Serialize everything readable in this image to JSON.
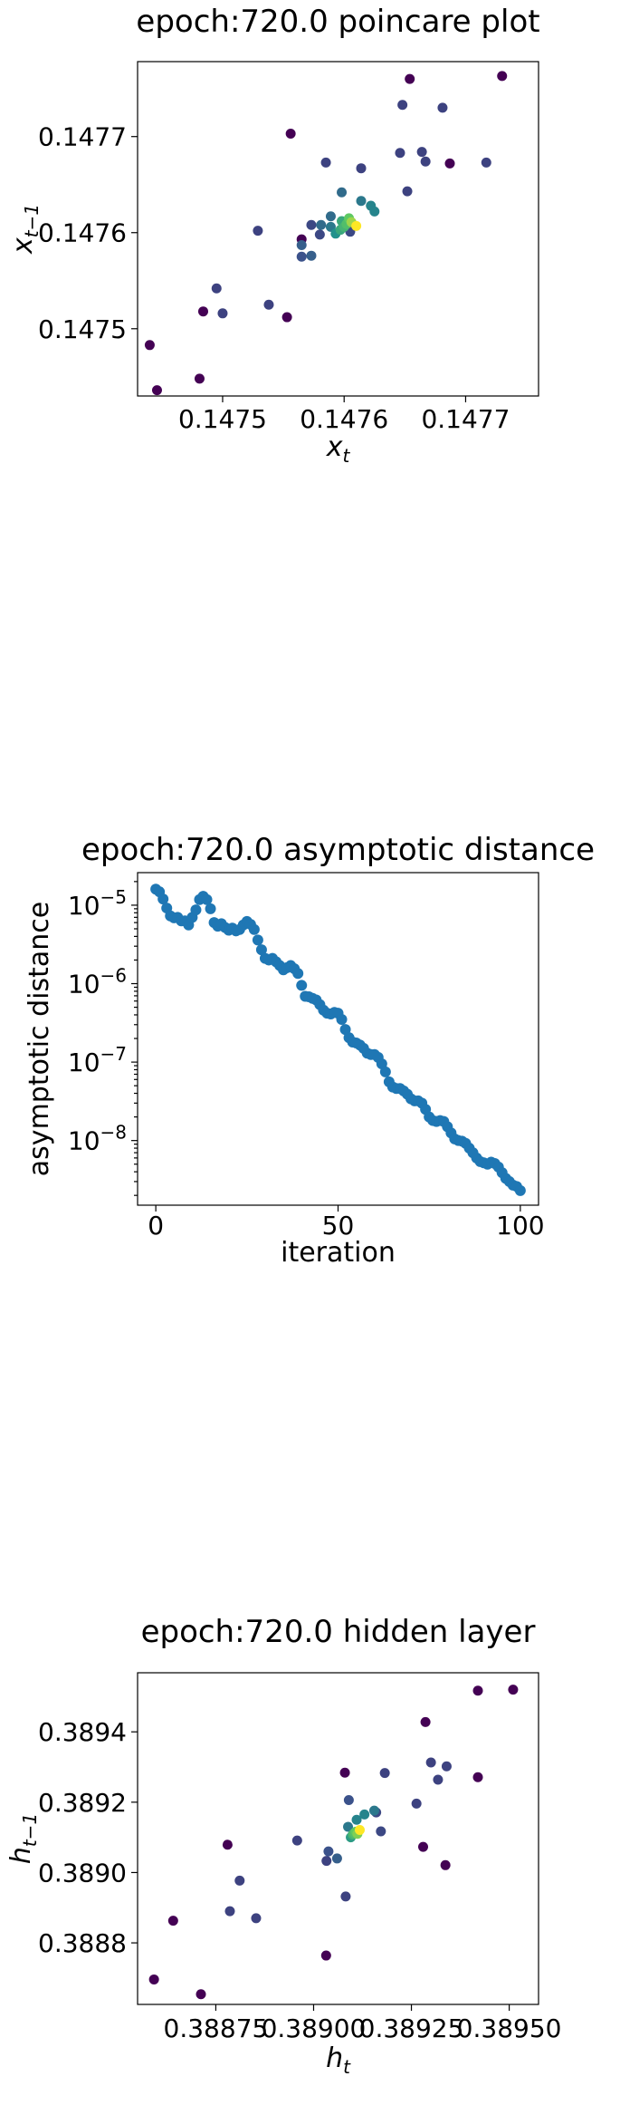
{
  "chart_data": [
    {
      "type": "scatter",
      "title": "epoch:720.0 poincare plot",
      "xlabel": "x",
      "xlabel_sub": "t",
      "ylabel": "x",
      "ylabel_sub": "t−1",
      "xlim": [
        0.14743,
        0.14776
      ],
      "ylim": [
        0.14743,
        0.147778
      ],
      "xticks": [
        0.1475,
        0.1476,
        0.1477
      ],
      "xtick_labels": [
        "0.1475",
        "0.1476",
        "0.1477"
      ],
      "yticks": [
        0.1475,
        0.1476,
        0.1477
      ],
      "ytick_labels": [
        "0.1475",
        "0.1476",
        "0.1477"
      ],
      "colormap": "viridis (point density)",
      "points": [
        {
          "x": 0.14744,
          "y": 0.147483,
          "c": 0.0
        },
        {
          "x": 0.147446,
          "y": 0.147436,
          "c": 0.0
        },
        {
          "x": 0.147481,
          "y": 0.147448,
          "c": 0.0
        },
        {
          "x": 0.147484,
          "y": 0.147518,
          "c": 0.0
        },
        {
          "x": 0.147556,
          "y": 0.147703,
          "c": 0.0
        },
        {
          "x": 0.147565,
          "y": 0.147593,
          "c": 0.0
        },
        {
          "x": 0.147687,
          "y": 0.147672,
          "c": 0.0
        },
        {
          "x": 0.14773,
          "y": 0.147763,
          "c": 0.0
        },
        {
          "x": 0.147654,
          "y": 0.14776,
          "c": 0.0
        },
        {
          "x": 0.147553,
          "y": 0.147512,
          "c": 0.0
        },
        {
          "x": 0.147495,
          "y": 0.147542,
          "c": 0.2
        },
        {
          "x": 0.1475,
          "y": 0.147516,
          "c": 0.2
        },
        {
          "x": 0.147529,
          "y": 0.147602,
          "c": 0.2
        },
        {
          "x": 0.147538,
          "y": 0.147525,
          "c": 0.2
        },
        {
          "x": 0.147573,
          "y": 0.147608,
          "c": 0.22
        },
        {
          "x": 0.14758,
          "y": 0.147598,
          "c": 0.22
        },
        {
          "x": 0.147585,
          "y": 0.147673,
          "c": 0.2
        },
        {
          "x": 0.147614,
          "y": 0.147667,
          "c": 0.2
        },
        {
          "x": 0.147605,
          "y": 0.147601,
          "c": 0.22
        },
        {
          "x": 0.147646,
          "y": 0.147683,
          "c": 0.2
        },
        {
          "x": 0.147652,
          "y": 0.147643,
          "c": 0.2
        },
        {
          "x": 0.147664,
          "y": 0.147684,
          "c": 0.2
        },
        {
          "x": 0.147667,
          "y": 0.147674,
          "c": 0.2
        },
        {
          "x": 0.147681,
          "y": 0.14773,
          "c": 0.2
        },
        {
          "x": 0.147648,
          "y": 0.147733,
          "c": 0.2
        },
        {
          "x": 0.147717,
          "y": 0.147673,
          "c": 0.2
        },
        {
          "x": 0.147565,
          "y": 0.147575,
          "c": 0.25
        },
        {
          "x": 0.147565,
          "y": 0.147587,
          "c": 0.3
        },
        {
          "x": 0.147573,
          "y": 0.147576,
          "c": 0.3
        },
        {
          "x": 0.147581,
          "y": 0.147608,
          "c": 0.35
        },
        {
          "x": 0.147589,
          "y": 0.147617,
          "c": 0.35
        },
        {
          "x": 0.147589,
          "y": 0.147606,
          "c": 0.4
        },
        {
          "x": 0.147598,
          "y": 0.147642,
          "c": 0.35
        },
        {
          "x": 0.147614,
          "y": 0.147633,
          "c": 0.4
        },
        {
          "x": 0.147622,
          "y": 0.147628,
          "c": 0.45
        },
        {
          "x": 0.147625,
          "y": 0.147622,
          "c": 0.45
        },
        {
          "x": 0.147593,
          "y": 0.147599,
          "c": 0.5
        },
        {
          "x": 0.147597,
          "y": 0.147603,
          "c": 0.6
        },
        {
          "x": 0.1476,
          "y": 0.147606,
          "c": 0.65
        },
        {
          "x": 0.147602,
          "y": 0.147609,
          "c": 0.7
        },
        {
          "x": 0.147598,
          "y": 0.147612,
          "c": 0.6
        },
        {
          "x": 0.147604,
          "y": 0.147615,
          "c": 0.75
        },
        {
          "x": 0.147606,
          "y": 0.147611,
          "c": 0.85
        },
        {
          "x": 0.14761,
          "y": 0.147607,
          "c": 1.0
        }
      ]
    },
    {
      "type": "scatter",
      "title": "epoch:720.0 asymptotic distance",
      "xlabel": "iteration",
      "ylabel": "asymptotic distance",
      "yscale": "log",
      "xlim": [
        -5,
        105
      ],
      "ylim": [
        1.5e-09,
        2.6e-05
      ],
      "xticks": [
        0,
        50,
        100
      ],
      "xtick_labels": [
        "0",
        "50",
        "100"
      ],
      "yticks": [
        1e-08,
        1e-07,
        1e-06,
        1e-05
      ],
      "ytick_labels": [
        "10",
        "10",
        "10",
        "10"
      ],
      "ytick_exponents": [
        "−8",
        "−7",
        "−6",
        "−5"
      ],
      "x": [
        0,
        1,
        2,
        3,
        4,
        5,
        6,
        7,
        8,
        9,
        10,
        11,
        12,
        13,
        14,
        15,
        16,
        17,
        18,
        19,
        20,
        21,
        22,
        23,
        24,
        25,
        26,
        27,
        28,
        29,
        30,
        31,
        32,
        33,
        34,
        35,
        36,
        37,
        38,
        39,
        40,
        41,
        42,
        43,
        44,
        45,
        46,
        47,
        48,
        49,
        50,
        51,
        52,
        53,
        54,
        55,
        56,
        57,
        58,
        59,
        60,
        61,
        62,
        63,
        64,
        65,
        66,
        67,
        68,
        69,
        70,
        71,
        72,
        73,
        74,
        75,
        76,
        77,
        78,
        79,
        80,
        81,
        82,
        83,
        84,
        85,
        86,
        87,
        88,
        89,
        90,
        91,
        92,
        93,
        94,
        95,
        96,
        97,
        98,
        99,
        100
      ],
      "y": [
        1.6e-05,
        1.48e-05,
        1.2e-05,
        9.2e-06,
        7.3e-06,
        6.9e-06,
        7e-06,
        6.3e-06,
        6.3e-06,
        5.6e-06,
        7e-06,
        8.7e-06,
        1.18e-05,
        1.3e-05,
        1.18e-05,
        9e-06,
        6e-06,
        5.4e-06,
        5.8e-06,
        5.2e-06,
        4.8e-06,
        5.1e-06,
        4.7e-06,
        4.9e-06,
        5.6e-06,
        6.2e-06,
        5.7e-06,
        4.9e-06,
        3.6e-06,
        2.7e-06,
        2.1e-06,
        2e-06,
        2.1e-06,
        1.9e-06,
        1.7e-06,
        1.5e-06,
        1.6e-06,
        1.7e-06,
        1.55e-06,
        1.35e-06,
        9.5e-07,
        6.9e-07,
        6.8e-07,
        6.5e-07,
        6.2e-07,
        5.4e-07,
        4.6e-07,
        4.2e-07,
        4.1e-07,
        4.3e-07,
        4.2e-07,
        3.5e-07,
        2.6e-07,
        2.05e-07,
        1.8e-07,
        1.75e-07,
        1.65e-07,
        1.5e-07,
        1.3e-07,
        1.25e-07,
        1.25e-07,
        1.15e-07,
        9.5e-08,
        7.5e-08,
        5.6e-08,
        4.8e-08,
        4.6e-08,
        4.6e-08,
        4.3e-08,
        3.9e-08,
        3.4e-08,
        3.2e-08,
        3.2e-08,
        3e-08,
        2.5e-08,
        2e-08,
        1.8e-08,
        1.75e-08,
        1.8e-08,
        1.75e-08,
        1.5e-08,
        1.25e-08,
        1.05e-08,
        1e-08,
        9.8e-09,
        9.2e-09,
        8e-09,
        7e-09,
        6e-09,
        5.4e-09,
        5.2e-09,
        5e-09,
        5.3e-09,
        5.1e-09,
        4.6e-09,
        3.9e-09,
        3.3e-09,
        3e-09,
        2.7e-09,
        2.6e-09,
        2.3e-09
      ],
      "color": "#1f77b4"
    },
    {
      "type": "scatter",
      "title": "epoch:720.0 hidden layer",
      "xlabel": "h",
      "xlabel_sub": "t",
      "ylabel": "h",
      "ylabel_sub": "t−1",
      "xlim": [
        0.38855,
        0.389575
      ],
      "ylim": [
        0.388625,
        0.389568
      ],
      "xticks": [
        0.38875,
        0.389,
        0.38925,
        0.3895
      ],
      "xtick_labels": [
        "0.38875",
        "0.38900",
        "0.38925",
        "0.38950"
      ],
      "yticks": [
        0.3888,
        0.389,
        0.3892,
        0.3894
      ],
      "ytick_labels": [
        "0.3888",
        "0.3890",
        "0.3892",
        "0.3894"
      ],
      "colormap": "viridis (point density)",
      "points": [
        {
          "x": 0.388592,
          "y": 0.388696,
          "c": 0.0
        },
        {
          "x": 0.388641,
          "y": 0.388863,
          "c": 0.0
        },
        {
          "x": 0.388712,
          "y": 0.388654,
          "c": 0.0
        },
        {
          "x": 0.38878,
          "y": 0.389079,
          "c": 0.0
        },
        {
          "x": 0.389032,
          "y": 0.388764,
          "c": 0.0
        },
        {
          "x": 0.38908,
          "y": 0.389284,
          "c": 0.0
        },
        {
          "x": 0.389286,
          "y": 0.389428,
          "c": 0.0
        },
        {
          "x": 0.38942,
          "y": 0.389517,
          "c": 0.0
        },
        {
          "x": 0.38951,
          "y": 0.38952,
          "c": 0.0
        },
        {
          "x": 0.389337,
          "y": 0.389021,
          "c": 0.0
        },
        {
          "x": 0.38928,
          "y": 0.389073,
          "c": 0.0
        },
        {
          "x": 0.38942,
          "y": 0.389271,
          "c": 0.0
        },
        {
          "x": 0.388786,
          "y": 0.38889,
          "c": 0.2
        },
        {
          "x": 0.388811,
          "y": 0.388977,
          "c": 0.2
        },
        {
          "x": 0.388853,
          "y": 0.38887,
          "c": 0.2
        },
        {
          "x": 0.388958,
          "y": 0.389091,
          "c": 0.2
        },
        {
          "x": 0.389033,
          "y": 0.389033,
          "c": 0.2
        },
        {
          "x": 0.389082,
          "y": 0.388932,
          "c": 0.2
        },
        {
          "x": 0.389182,
          "y": 0.389283,
          "c": 0.2
        },
        {
          "x": 0.389263,
          "y": 0.389196,
          "c": 0.2
        },
        {
          "x": 0.3893,
          "y": 0.389313,
          "c": 0.2
        },
        {
          "x": 0.389318,
          "y": 0.389264,
          "c": 0.2
        },
        {
          "x": 0.38934,
          "y": 0.389302,
          "c": 0.2
        },
        {
          "x": 0.38916,
          "y": 0.389171,
          "c": 0.22
        },
        {
          "x": 0.389172,
          "y": 0.389117,
          "c": 0.22
        },
        {
          "x": 0.389038,
          "y": 0.38906,
          "c": 0.25
        },
        {
          "x": 0.38906,
          "y": 0.38904,
          "c": 0.3
        },
        {
          "x": 0.38909,
          "y": 0.389206,
          "c": 0.25
        },
        {
          "x": 0.389088,
          "y": 0.38913,
          "c": 0.4
        },
        {
          "x": 0.38911,
          "y": 0.38915,
          "c": 0.45
        },
        {
          "x": 0.38913,
          "y": 0.389165,
          "c": 0.45
        },
        {
          "x": 0.389155,
          "y": 0.389176,
          "c": 0.4
        },
        {
          "x": 0.389095,
          "y": 0.3891,
          "c": 0.55
        },
        {
          "x": 0.3891,
          "y": 0.389108,
          "c": 0.65
        },
        {
          "x": 0.389104,
          "y": 0.389112,
          "c": 0.7
        },
        {
          "x": 0.389108,
          "y": 0.389116,
          "c": 0.75
        },
        {
          "x": 0.389112,
          "y": 0.38911,
          "c": 0.8
        },
        {
          "x": 0.389118,
          "y": 0.389121,
          "c": 1.0
        }
      ]
    }
  ]
}
